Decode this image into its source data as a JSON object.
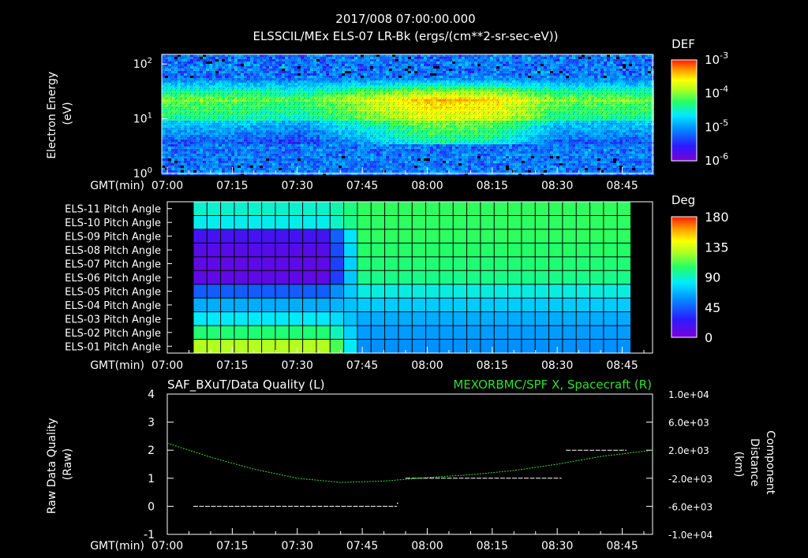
{
  "header": {
    "timestamp": "2017/008 07:00:00.000",
    "subtitle": "ELSSCIL/MEx ELS-07 LR-Bk  (ergs/(cm**2-sr-sec-eV))"
  },
  "time_axis": {
    "label": "GMT(min)",
    "ticks": [
      "07:00",
      "07:15",
      "07:30",
      "07:45",
      "08:00",
      "08:15",
      "08:30",
      "08:45"
    ],
    "range_minutes": [
      0,
      112
    ]
  },
  "colors": {
    "background": "#000000",
    "text": "#ffffff",
    "green_series": "#33dd33",
    "colormap": [
      "#7a00d8",
      "#2a1cff",
      "#0090ff",
      "#00eaff",
      "#22ff66",
      "#aaff22",
      "#ffff00",
      "#ff9a00",
      "#ff1a00"
    ]
  },
  "chart_data": [
    {
      "type": "heatmap",
      "name": "energy-spectrogram",
      "ylabel": "Electron Energy",
      "yunits": "(eV)",
      "yscale": "log",
      "ylim": [
        1,
        150
      ],
      "ytick_labels": [
        {
          "value": 1,
          "base": "10",
          "exp": "0"
        },
        {
          "value": 10,
          "base": "10",
          "exp": "1"
        },
        {
          "value": 100,
          "base": "10",
          "exp": "2"
        }
      ],
      "colorbar": {
        "title": "DEF",
        "scale": "log",
        "range": [
          1e-06,
          0.001
        ],
        "ticks": [
          {
            "value": 0.001,
            "base": "10",
            "exp": "-3"
          },
          {
            "value": 0.0001,
            "base": "10",
            "exp": "-4"
          },
          {
            "value": 1e-05,
            "base": "10",
            "exp": "-5"
          },
          {
            "value": 1e-06,
            "base": "10",
            "exp": "-6"
          }
        ]
      },
      "description_points": [
        {
          "time_min": 0,
          "peak_level": 0.55
        },
        {
          "time_min": 15,
          "peak_level": 0.55
        },
        {
          "time_min": 30,
          "peak_level": 0.5
        },
        {
          "time_min": 45,
          "peak_level": 0.65
        },
        {
          "time_min": 60,
          "peak_level": 0.8
        },
        {
          "time_min": 75,
          "peak_level": 0.78
        },
        {
          "time_min": 90,
          "peak_level": 0.55
        },
        {
          "time_min": 105,
          "peak_level": 0.55
        }
      ]
    },
    {
      "type": "heatmap",
      "name": "pitch-angle-grid",
      "rows": [
        "ELS-11 Pitch Angle",
        "ELS-10 Pitch Angle",
        "ELS-09 Pitch Angle",
        "ELS-08 Pitch Angle",
        "ELS-07 Pitch Angle",
        "ELS-06 Pitch Angle",
        "ELS-05 Pitch Angle",
        "ELS-04 Pitch Angle",
        "ELS-03 Pitch Angle",
        "ELS-02 Pitch Angle",
        "ELS-01 Pitch Angle"
      ],
      "data_time_range_min": [
        6,
        107
      ],
      "transition_min": 41,
      "before_deg": [
        75,
        70,
        15,
        10,
        8,
        8,
        35,
        52,
        68,
        88,
        115
      ],
      "after_deg": [
        92,
        92,
        92,
        90,
        88,
        85,
        72,
        60,
        52,
        48,
        45
      ],
      "colorbar": {
        "title": "Deg",
        "range": [
          0,
          180
        ],
        "ticks": [
          "180",
          "135",
          "90",
          "45",
          "0"
        ]
      }
    },
    {
      "type": "line",
      "name": "quality-and-position",
      "title_left": "SAF_BXuT/Data Quality (L)",
      "title_right": "MEXORBMC/SPF X, Spacecraft (R)",
      "ylabel_left": [
        "Raw Data Quality",
        "(Raw)"
      ],
      "ylabel_right": [
        "Component",
        "Distance",
        "(km)"
      ],
      "ylim_left": [
        -1,
        4
      ],
      "yticks_left": [
        "4",
        "3",
        "2",
        "1",
        "0",
        "-1"
      ],
      "ylim_right": [
        -10000,
        10000
      ],
      "yticks_right": [
        "1.0e+04",
        "6.0e+03",
        "2.0e+03",
        "-2.0e+03",
        "-6.0e+03",
        "-1.0e+04"
      ],
      "series": [
        {
          "name": "Data Quality",
          "axis": "left",
          "color": "#ffffff",
          "segments": [
            {
              "x": [
                6,
                53
              ],
              "y": 0
            },
            {
              "x": [
                55,
                91
              ],
              "y": 1
            },
            {
              "x": [
                92,
                106
              ],
              "y": 2
            }
          ],
          "points": [
            {
              "x": 53,
              "y": 0.13
            }
          ]
        },
        {
          "name": "SPF X, Spacecraft",
          "axis": "right",
          "color": "#33dd33",
          "x": [
            0,
            10,
            20,
            30,
            40,
            50,
            60,
            70,
            80,
            90,
            100,
            112
          ],
          "y": [
            3000,
            1000,
            -700,
            -2000,
            -2600,
            -2400,
            -1900,
            -1500,
            -900,
            0,
            1100,
            2000
          ]
        }
      ]
    }
  ]
}
